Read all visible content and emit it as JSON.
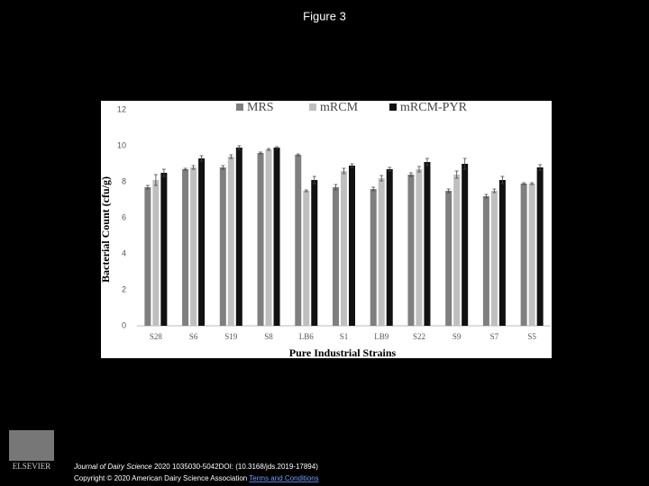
{
  "slide_title": "Figure 3",
  "chart_data": {
    "type": "bar",
    "y_label": "Bacterial Count (cfu/g)",
    "x_label": "Pure Industrial Strains",
    "categories": [
      "S28",
      "S6",
      "S19",
      "S8",
      "LB6",
      "S1",
      "LB9",
      "S22",
      "S9",
      "S7",
      "S5"
    ],
    "series": [
      {
        "name": "MRS",
        "color": "#7f7f7f",
        "values": [
          7.7,
          8.7,
          8.8,
          9.6,
          9.5,
          7.7,
          7.6,
          8.4,
          7.5,
          7.2,
          7.9
        ],
        "errors": [
          0.1,
          0.05,
          0.1,
          0.05,
          0.05,
          0.15,
          0.1,
          0.1,
          0.1,
          0.1,
          0.05
        ]
      },
      {
        "name": "mRCM",
        "color": "#bfbfbf",
        "values": [
          8.1,
          8.8,
          9.4,
          9.8,
          7.5,
          8.6,
          8.2,
          8.7,
          8.4,
          7.5,
          7.9
        ],
        "errors": [
          0.3,
          0.1,
          0.1,
          0.05,
          0.05,
          0.15,
          0.15,
          0.15,
          0.2,
          0.1,
          0.05
        ]
      },
      {
        "name": "mRCM-PYR",
        "color": "#111111",
        "values": [
          8.5,
          9.3,
          9.9,
          9.9,
          8.1,
          8.9,
          8.7,
          9.1,
          9.0,
          8.1,
          8.8
        ],
        "errors": [
          0.2,
          0.15,
          0.1,
          0.05,
          0.2,
          0.1,
          0.1,
          0.2,
          0.3,
          0.2,
          0.15
        ]
      }
    ],
    "ylim": [
      0,
      12
    ],
    "yticks": [
      0,
      2,
      4,
      6,
      8,
      10,
      12
    ],
    "grid": false,
    "legend": "top"
  },
  "footer": {
    "journal": "Journal of Dairy Science",
    "citation": "2020 1035030-5042DOI: (10.3168/jds.2019-17894)",
    "copyright": "Copyright © 2020 American Dairy Science Association",
    "link": "Terms and Conditions",
    "publisher": "ELSEVIER"
  }
}
